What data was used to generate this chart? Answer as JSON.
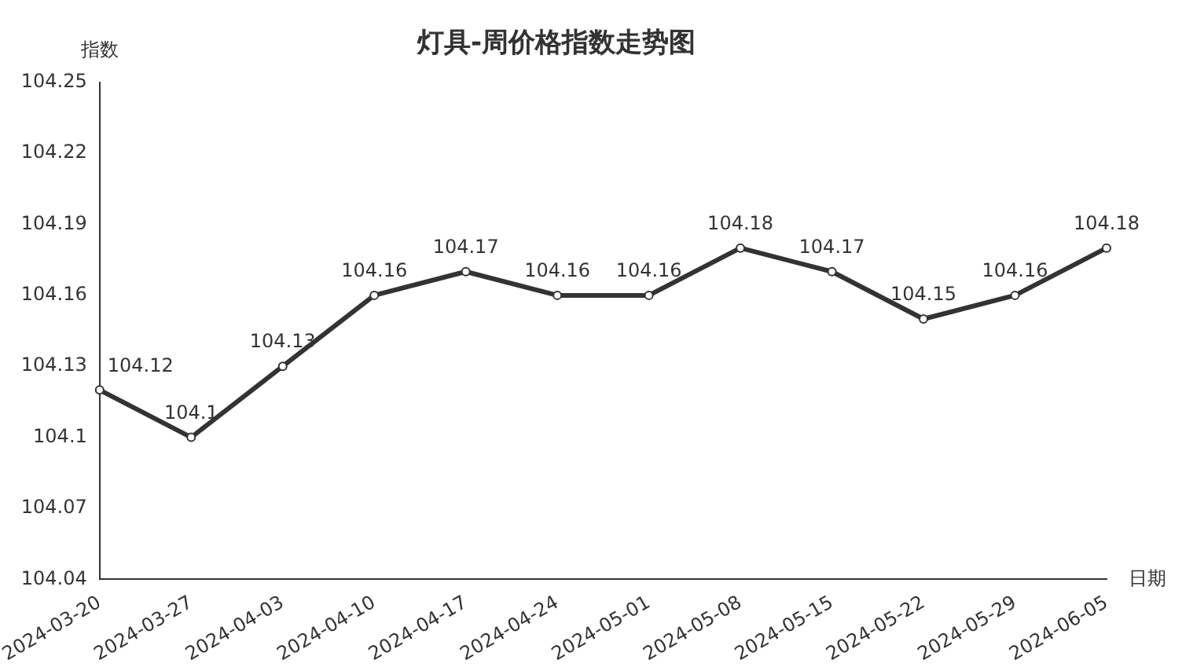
{
  "chart_data": {
    "type": "line",
    "title": "灯具-周价格指数走势图",
    "xlabel": "日期",
    "ylabel": "指数",
    "categories": [
      "2024-03-20",
      "2024-03-27",
      "2024-04-03",
      "2024-04-10",
      "2024-04-17",
      "2024-04-24",
      "2024-05-01",
      "2024-05-08",
      "2024-05-15",
      "2024-05-22",
      "2024-05-29",
      "2024-06-05"
    ],
    "series": [
      {
        "color": "#333333",
        "values": [
          104.12,
          104.1,
          104.13,
          104.16,
          104.17,
          104.16,
          104.16,
          104.18,
          104.17,
          104.15,
          104.16,
          104.18
        ]
      }
    ],
    "ylim": [
      104.04,
      104.25
    ],
    "yticks": [
      104.04,
      104.07,
      104.1,
      104.13,
      104.16,
      104.19,
      104.22,
      104.25
    ],
    "grid": false,
    "legend": false,
    "marker": "circle",
    "line_style": "solid",
    "data_labels": true
  }
}
